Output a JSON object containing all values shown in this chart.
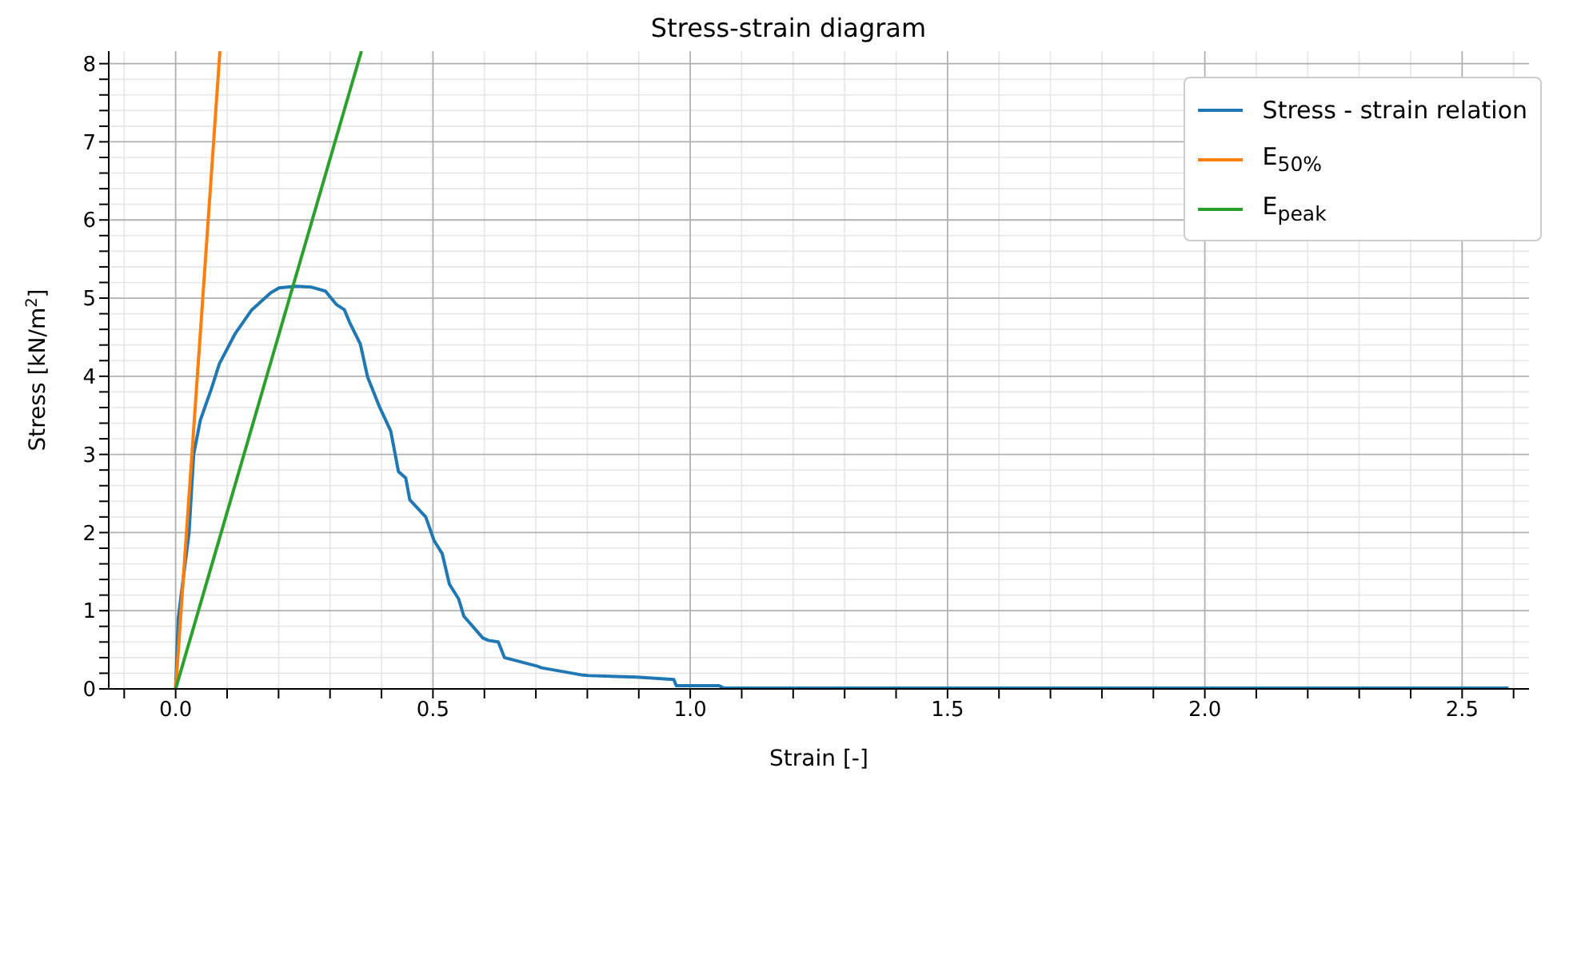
{
  "chart_data": {
    "type": "line",
    "title": "Stress-strain diagram",
    "xlabel": "Strain [-]",
    "ylabel": "Stress [kN/m$^{2}$]",
    "xlim": [
      -0.13,
      2.63
    ],
    "ylim": [
      0,
      8.16
    ],
    "xticks": [
      {
        "value": -0.1,
        "label": null
      },
      {
        "value": 0,
        "label": "0.0"
      },
      {
        "value": 0.1,
        "label": null
      },
      {
        "value": 0.2,
        "label": null
      },
      {
        "value": 0.3,
        "label": null
      },
      {
        "value": 0.4,
        "label": null
      },
      {
        "value": 0.5,
        "label": "0.5"
      },
      {
        "value": 0.6,
        "label": null
      },
      {
        "value": 0.7,
        "label": null
      },
      {
        "value": 0.8,
        "label": null
      },
      {
        "value": 0.9,
        "label": null
      },
      {
        "value": 1,
        "label": "1.0"
      },
      {
        "value": 1.1,
        "label": null
      },
      {
        "value": 1.2,
        "label": null
      },
      {
        "value": 1.3,
        "label": null
      },
      {
        "value": 1.4,
        "label": null
      },
      {
        "value": 1.5,
        "label": "1.5"
      },
      {
        "value": 1.6,
        "label": null
      },
      {
        "value": 1.7,
        "label": null
      },
      {
        "value": 1.8,
        "label": null
      },
      {
        "value": 1.9,
        "label": null
      },
      {
        "value": 2,
        "label": "2.0"
      },
      {
        "value": 2.1,
        "label": null
      },
      {
        "value": 2.2,
        "label": null
      },
      {
        "value": 2.3,
        "label": null
      },
      {
        "value": 2.4,
        "label": null
      },
      {
        "value": 2.5,
        "label": "2.5"
      },
      {
        "value": 2.6,
        "label": null
      }
    ],
    "yticks": [
      0,
      {
        "value": 0.2,
        "label": null
      },
      {
        "value": 0.4,
        "label": null
      },
      {
        "value": 0.6,
        "label": null
      },
      {
        "value": 0.8,
        "label": null
      },
      1,
      {
        "value": 1.2,
        "label": null
      },
      {
        "value": 1.4,
        "label": null
      },
      {
        "value": 1.6,
        "label": null
      },
      {
        "value": 1.8,
        "label": null
      },
      2,
      {
        "value": 2.2,
        "label": null
      },
      {
        "value": 2.4,
        "label": null
      },
      {
        "value": 2.6,
        "label": null
      },
      {
        "value": 2.8,
        "label": null
      },
      3,
      {
        "value": 3.2,
        "label": null
      },
      {
        "value": 3.4,
        "label": null
      },
      {
        "value": 3.6,
        "label": null
      },
      {
        "value": 3.8,
        "label": null
      },
      4,
      {
        "value": 4.2,
        "label": null
      },
      {
        "value": 4.4,
        "label": null
      },
      {
        "value": 4.6,
        "label": null
      },
      {
        "value": 4.8,
        "label": null
      },
      5,
      {
        "value": 5.2,
        "label": null
      },
      {
        "value": 5.4,
        "label": null
      },
      {
        "value": 5.6,
        "label": null
      },
      {
        "value": 5.8,
        "label": null
      },
      6,
      {
        "value": 6.2,
        "label": null
      },
      {
        "value": 6.4,
        "label": null
      },
      {
        "value": 6.6,
        "label": null
      },
      {
        "value": 6.8,
        "label": null
      },
      7,
      {
        "value": 7.2,
        "label": null
      },
      {
        "value": 7.4,
        "label": null
      },
      {
        "value": 7.6,
        "label": null
      },
      {
        "value": 7.8,
        "label": null
      },
      8
    ],
    "grid": true,
    "legend": "top right",
    "marker": "none",
    "line_style": "solid",
    "series": [
      {
        "name": "Stress - strain relation",
        "color": "#1f77b4",
        "x": [
          0,
          0.005,
          0.026,
          0.035,
          0.048,
          0.069,
          0.085,
          0.116,
          0.148,
          0.185,
          0.201,
          0.233,
          0.264,
          0.291,
          0.312,
          0.328,
          0.338,
          0.359,
          0.373,
          0.396,
          0.418,
          0.433,
          0.447,
          0.455,
          0.486,
          0.502,
          0.518,
          0.532,
          0.55,
          0.56,
          0.597,
          0.608,
          0.627,
          0.639,
          0.703,
          0.711,
          0.788,
          0.803,
          0.896,
          0.968,
          0.973,
          1.056,
          1.066,
          1.3,
          1.6,
          2.0,
          2.3,
          2.59
        ],
        "values": [
          0,
          0.9,
          2.0,
          3.0,
          3.44,
          3.83,
          4.16,
          4.55,
          4.85,
          5.07,
          5.13,
          5.15,
          5.14,
          5.09,
          4.92,
          4.85,
          4.69,
          4.41,
          3.99,
          3.61,
          3.3,
          2.78,
          2.7,
          2.42,
          2.2,
          1.9,
          1.73,
          1.34,
          1.15,
          0.93,
          0.65,
          0.62,
          0.6,
          0.4,
          0.29,
          0.27,
          0.18,
          0.17,
          0.15,
          0.12,
          0.04,
          0.04,
          0.01,
          0.01,
          0.01,
          0.01,
          0.01,
          0.01
        ]
      },
      {
        "name": "E$_{50%}$",
        "color": "#ff7f0e",
        "x": [
          0,
          0.086
        ],
        "values": [
          0,
          8.16
        ]
      },
      {
        "name": "E$_{peak}$",
        "color": "#2ca02c",
        "x": [
          0,
          0.361
        ],
        "values": [
          0,
          8.16
        ]
      }
    ]
  }
}
